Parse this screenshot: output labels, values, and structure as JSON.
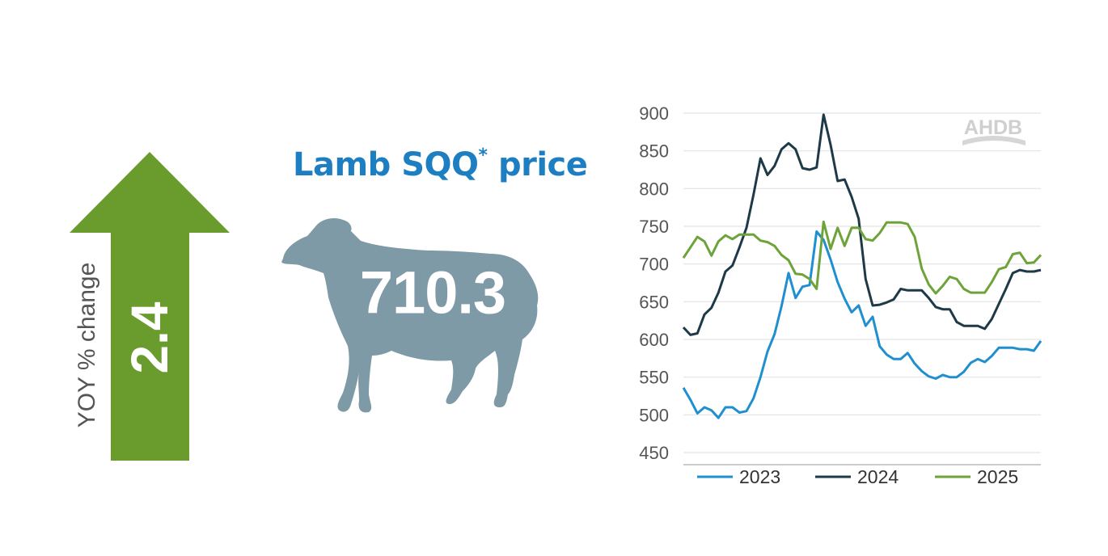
{
  "title": {
    "main": "Lamb SQQ",
    "asterisk": "*",
    "suffix": " price"
  },
  "headline_value": "710.3",
  "yoy": {
    "label": "YOY % change",
    "value": "2.4",
    "direction": "up"
  },
  "logo_text": "AHDB",
  "colors": {
    "arrow": "#6a9c2d",
    "sheep": "#7f9aa7",
    "title": "#1d7fc1",
    "series_2023": "#1f8fd0",
    "series_2024": "#1e3947",
    "series_2025": "#6ea33a"
  },
  "chart_data": {
    "type": "line",
    "ylim": [
      450,
      900
    ],
    "yticks": [
      450,
      500,
      550,
      600,
      650,
      700,
      750,
      800,
      850,
      900
    ],
    "grid": "horizontal",
    "legend": "bottom",
    "x_points": 52,
    "series": [
      {
        "name": "2023",
        "color": "#1f8fd0",
        "values": [
          536,
          520,
          502,
          510,
          506,
          496,
          510,
          510,
          503,
          505,
          522,
          550,
          584,
          607,
          644,
          688,
          655,
          670,
          672,
          743,
          732,
          706,
          676,
          654,
          636,
          645,
          618,
          630,
          591,
          580,
          574,
          574,
          582,
          568,
          558,
          551,
          548,
          553,
          550,
          550,
          557,
          569,
          574,
          570,
          578,
          589,
          589,
          589,
          587,
          587,
          585,
          598
        ]
      },
      {
        "name": "2024",
        "color": "#1e3947",
        "values": [
          616,
          606,
          608,
          633,
          642,
          662,
          690,
          698,
          722,
          748,
          792,
          840,
          818,
          830,
          852,
          860,
          852,
          827,
          825,
          828,
          898,
          858,
          810,
          812,
          789,
          760,
          680,
          645,
          646,
          649,
          653,
          667,
          665,
          665,
          665,
          655,
          643,
          640,
          640,
          623,
          618,
          618,
          618,
          614,
          627,
          647,
          667,
          688,
          692,
          690,
          690,
          692
        ]
      },
      {
        "name": "2025",
        "color": "#6ea33a",
        "values": [
          708,
          722,
          736,
          730,
          711,
          730,
          738,
          733,
          739,
          739,
          739,
          731,
          729,
          724,
          712,
          705,
          687,
          686,
          680,
          667,
          756,
          720,
          748,
          724,
          748,
          748,
          733,
          731,
          741,
          755,
          755,
          755,
          753,
          736,
          694,
          673,
          661,
          671,
          683,
          680,
          667,
          662,
          662,
          662,
          676,
          693,
          696,
          713,
          715,
          701,
          702,
          712
        ]
      }
    ]
  }
}
